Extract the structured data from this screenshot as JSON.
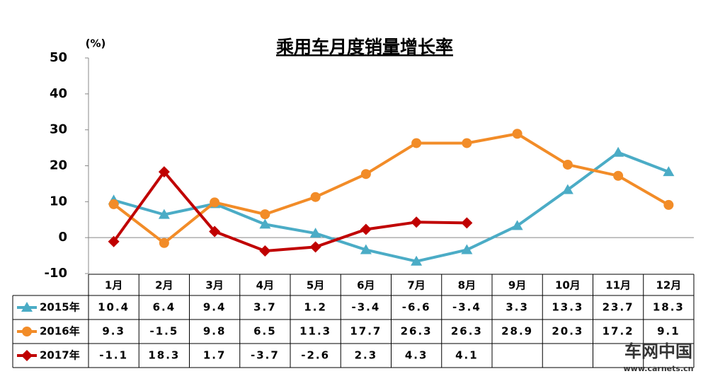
{
  "chart_data": {
    "type": "line",
    "title": "乘用车月度销量增长率",
    "y_unit": "(%)",
    "categories": [
      "1月",
      "2月",
      "3月",
      "4月",
      "5月",
      "6月",
      "7月",
      "8月",
      "9月",
      "10月",
      "11月",
      "12月"
    ],
    "series": [
      {
        "name": "2015年",
        "color": "#4bacc6",
        "marker": "triangle",
        "values": [
          10.4,
          6.4,
          9.4,
          3.7,
          1.2,
          -3.4,
          -6.6,
          -3.4,
          3.3,
          13.3,
          23.7,
          18.3
        ]
      },
      {
        "name": "2016年",
        "color": "#f28c28",
        "marker": "circle",
        "values": [
          9.3,
          -1.5,
          9.8,
          6.5,
          11.3,
          17.7,
          26.3,
          26.3,
          28.9,
          20.3,
          17.2,
          9.1
        ]
      },
      {
        "name": "2017年",
        "color": "#c00000",
        "marker": "diamond",
        "values": [
          -1.1,
          18.3,
          1.7,
          -3.7,
          -2.6,
          2.3,
          4.3,
          4.1,
          null,
          null,
          null,
          null
        ]
      }
    ],
    "ylim": [
      -10,
      50
    ],
    "yticks": [
      -10,
      0,
      10,
      20,
      30,
      40,
      50
    ],
    "watermark": {
      "brand": "车网中国",
      "url": "www.carnets.cn"
    }
  }
}
